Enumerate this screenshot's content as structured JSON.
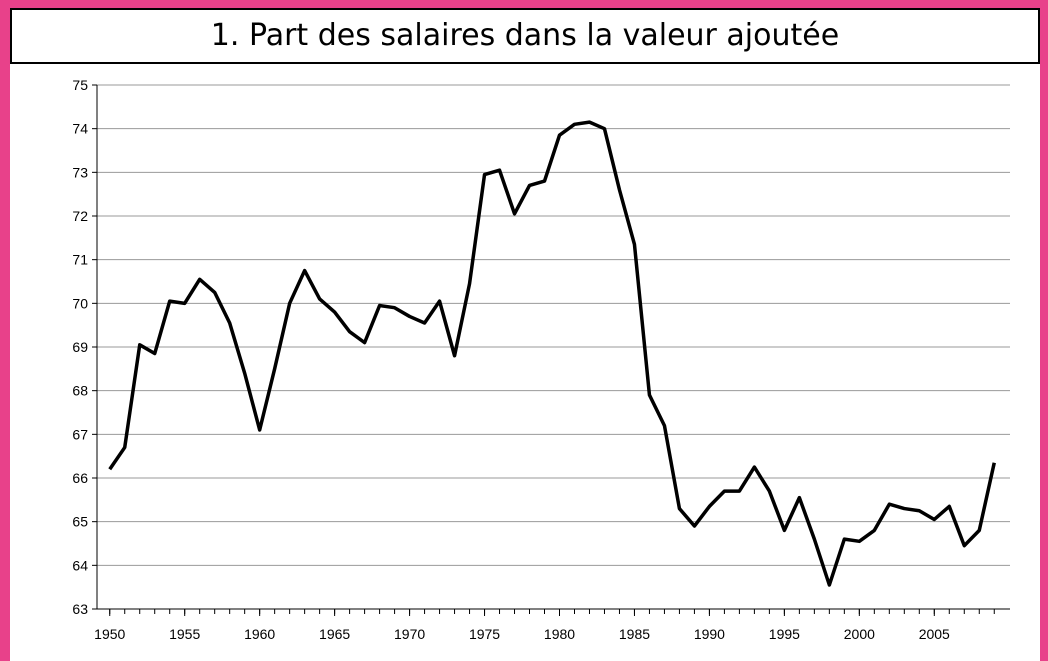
{
  "chart_data": {
    "type": "line",
    "title": "1. Part des salaires dans la valeur ajoutée",
    "x": [
      1950,
      1951,
      1952,
      1953,
      1954,
      1955,
      1956,
      1957,
      1958,
      1959,
      1960,
      1961,
      1962,
      1963,
      1964,
      1965,
      1966,
      1967,
      1968,
      1969,
      1970,
      1971,
      1972,
      1973,
      1974,
      1975,
      1976,
      1977,
      1978,
      1979,
      1980,
      1981,
      1982,
      1983,
      1984,
      1985,
      1986,
      1987,
      1988,
      1989,
      1990,
      1991,
      1992,
      1993,
      1994,
      1995,
      1996,
      1997,
      1998,
      1999,
      2000,
      2001,
      2002,
      2003,
      2004,
      2005,
      2006,
      2007,
      2008,
      2009
    ],
    "series": [
      {
        "color": "#000000",
        "values": [
          66.2,
          66.7,
          69.05,
          68.85,
          70.05,
          70.0,
          70.55,
          70.25,
          69.55,
          68.4,
          67.1,
          68.5,
          70.0,
          70.75,
          70.1,
          69.8,
          69.35,
          69.1,
          69.95,
          69.9,
          69.7,
          69.55,
          70.05,
          68.8,
          70.45,
          72.95,
          73.05,
          72.05,
          72.7,
          72.8,
          73.85,
          74.1,
          74.15,
          74.0,
          72.6,
          71.35,
          67.9,
          67.2,
          65.3,
          64.9,
          65.35,
          65.7,
          65.7,
          66.25,
          65.7,
          64.8,
          65.55,
          64.6,
          63.55,
          64.6,
          64.55,
          64.8,
          65.4,
          65.3,
          65.25,
          65.05,
          65.35,
          64.45,
          64.8,
          66.35
        ]
      }
    ],
    "xlim": [
      1949.15,
      2010.05
    ],
    "xticks": [
      1950,
      1955,
      1960,
      1965,
      1970,
      1975,
      1980,
      1985,
      1990,
      1995,
      2000,
      2005
    ],
    "ylim": [
      63,
      75
    ],
    "yticks": [
      63,
      64,
      65,
      66,
      67,
      68,
      69,
      70,
      71,
      72,
      73,
      74,
      75
    ],
    "grid": true
  }
}
